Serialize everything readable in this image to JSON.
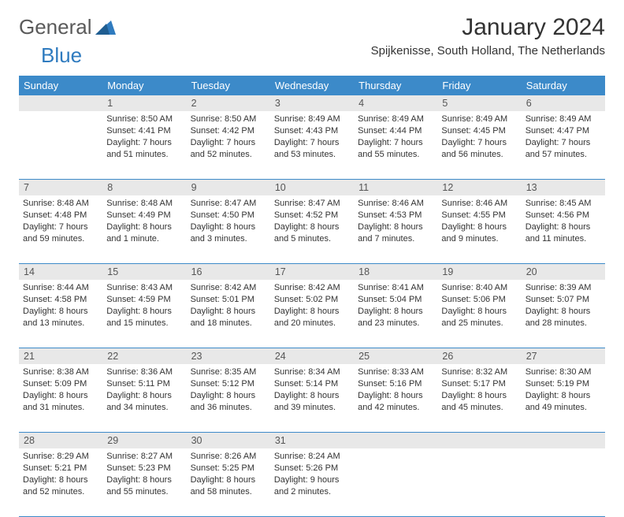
{
  "brand": {
    "general": "General",
    "blue": "Blue"
  },
  "title": "January 2024",
  "location": "Spijkenisse, South Holland, The Netherlands",
  "colors": {
    "header_bg": "#3c8ac9",
    "header_text": "#ffffff",
    "daynum_bg": "#e8e8e8",
    "border": "#3c8ac9",
    "text": "#333333",
    "logo_gray": "#5a5a5a",
    "logo_blue": "#2f7bbf",
    "page_bg": "#ffffff"
  },
  "day_names": [
    "Sunday",
    "Monday",
    "Tuesday",
    "Wednesday",
    "Thursday",
    "Friday",
    "Saturday"
  ],
  "weeks": [
    [
      {
        "n": "",
        "lines": []
      },
      {
        "n": "1",
        "lines": [
          "Sunrise: 8:50 AM",
          "Sunset: 4:41 PM",
          "Daylight: 7 hours",
          "and 51 minutes."
        ]
      },
      {
        "n": "2",
        "lines": [
          "Sunrise: 8:50 AM",
          "Sunset: 4:42 PM",
          "Daylight: 7 hours",
          "and 52 minutes."
        ]
      },
      {
        "n": "3",
        "lines": [
          "Sunrise: 8:49 AM",
          "Sunset: 4:43 PM",
          "Daylight: 7 hours",
          "and 53 minutes."
        ]
      },
      {
        "n": "4",
        "lines": [
          "Sunrise: 8:49 AM",
          "Sunset: 4:44 PM",
          "Daylight: 7 hours",
          "and 55 minutes."
        ]
      },
      {
        "n": "5",
        "lines": [
          "Sunrise: 8:49 AM",
          "Sunset: 4:45 PM",
          "Daylight: 7 hours",
          "and 56 minutes."
        ]
      },
      {
        "n": "6",
        "lines": [
          "Sunrise: 8:49 AM",
          "Sunset: 4:47 PM",
          "Daylight: 7 hours",
          "and 57 minutes."
        ]
      }
    ],
    [
      {
        "n": "7",
        "lines": [
          "Sunrise: 8:48 AM",
          "Sunset: 4:48 PM",
          "Daylight: 7 hours",
          "and 59 minutes."
        ]
      },
      {
        "n": "8",
        "lines": [
          "Sunrise: 8:48 AM",
          "Sunset: 4:49 PM",
          "Daylight: 8 hours",
          "and 1 minute."
        ]
      },
      {
        "n": "9",
        "lines": [
          "Sunrise: 8:47 AM",
          "Sunset: 4:50 PM",
          "Daylight: 8 hours",
          "and 3 minutes."
        ]
      },
      {
        "n": "10",
        "lines": [
          "Sunrise: 8:47 AM",
          "Sunset: 4:52 PM",
          "Daylight: 8 hours",
          "and 5 minutes."
        ]
      },
      {
        "n": "11",
        "lines": [
          "Sunrise: 8:46 AM",
          "Sunset: 4:53 PM",
          "Daylight: 8 hours",
          "and 7 minutes."
        ]
      },
      {
        "n": "12",
        "lines": [
          "Sunrise: 8:46 AM",
          "Sunset: 4:55 PM",
          "Daylight: 8 hours",
          "and 9 minutes."
        ]
      },
      {
        "n": "13",
        "lines": [
          "Sunrise: 8:45 AM",
          "Sunset: 4:56 PM",
          "Daylight: 8 hours",
          "and 11 minutes."
        ]
      }
    ],
    [
      {
        "n": "14",
        "lines": [
          "Sunrise: 8:44 AM",
          "Sunset: 4:58 PM",
          "Daylight: 8 hours",
          "and 13 minutes."
        ]
      },
      {
        "n": "15",
        "lines": [
          "Sunrise: 8:43 AM",
          "Sunset: 4:59 PM",
          "Daylight: 8 hours",
          "and 15 minutes."
        ]
      },
      {
        "n": "16",
        "lines": [
          "Sunrise: 8:42 AM",
          "Sunset: 5:01 PM",
          "Daylight: 8 hours",
          "and 18 minutes."
        ]
      },
      {
        "n": "17",
        "lines": [
          "Sunrise: 8:42 AM",
          "Sunset: 5:02 PM",
          "Daylight: 8 hours",
          "and 20 minutes."
        ]
      },
      {
        "n": "18",
        "lines": [
          "Sunrise: 8:41 AM",
          "Sunset: 5:04 PM",
          "Daylight: 8 hours",
          "and 23 minutes."
        ]
      },
      {
        "n": "19",
        "lines": [
          "Sunrise: 8:40 AM",
          "Sunset: 5:06 PM",
          "Daylight: 8 hours",
          "and 25 minutes."
        ]
      },
      {
        "n": "20",
        "lines": [
          "Sunrise: 8:39 AM",
          "Sunset: 5:07 PM",
          "Daylight: 8 hours",
          "and 28 minutes."
        ]
      }
    ],
    [
      {
        "n": "21",
        "lines": [
          "Sunrise: 8:38 AM",
          "Sunset: 5:09 PM",
          "Daylight: 8 hours",
          "and 31 minutes."
        ]
      },
      {
        "n": "22",
        "lines": [
          "Sunrise: 8:36 AM",
          "Sunset: 5:11 PM",
          "Daylight: 8 hours",
          "and 34 minutes."
        ]
      },
      {
        "n": "23",
        "lines": [
          "Sunrise: 8:35 AM",
          "Sunset: 5:12 PM",
          "Daylight: 8 hours",
          "and 36 minutes."
        ]
      },
      {
        "n": "24",
        "lines": [
          "Sunrise: 8:34 AM",
          "Sunset: 5:14 PM",
          "Daylight: 8 hours",
          "and 39 minutes."
        ]
      },
      {
        "n": "25",
        "lines": [
          "Sunrise: 8:33 AM",
          "Sunset: 5:16 PM",
          "Daylight: 8 hours",
          "and 42 minutes."
        ]
      },
      {
        "n": "26",
        "lines": [
          "Sunrise: 8:32 AM",
          "Sunset: 5:17 PM",
          "Daylight: 8 hours",
          "and 45 minutes."
        ]
      },
      {
        "n": "27",
        "lines": [
          "Sunrise: 8:30 AM",
          "Sunset: 5:19 PM",
          "Daylight: 8 hours",
          "and 49 minutes."
        ]
      }
    ],
    [
      {
        "n": "28",
        "lines": [
          "Sunrise: 8:29 AM",
          "Sunset: 5:21 PM",
          "Daylight: 8 hours",
          "and 52 minutes."
        ]
      },
      {
        "n": "29",
        "lines": [
          "Sunrise: 8:27 AM",
          "Sunset: 5:23 PM",
          "Daylight: 8 hours",
          "and 55 minutes."
        ]
      },
      {
        "n": "30",
        "lines": [
          "Sunrise: 8:26 AM",
          "Sunset: 5:25 PM",
          "Daylight: 8 hours",
          "and 58 minutes."
        ]
      },
      {
        "n": "31",
        "lines": [
          "Sunrise: 8:24 AM",
          "Sunset: 5:26 PM",
          "Daylight: 9 hours",
          "and 2 minutes."
        ]
      },
      {
        "n": "",
        "lines": []
      },
      {
        "n": "",
        "lines": []
      },
      {
        "n": "",
        "lines": []
      }
    ]
  ]
}
